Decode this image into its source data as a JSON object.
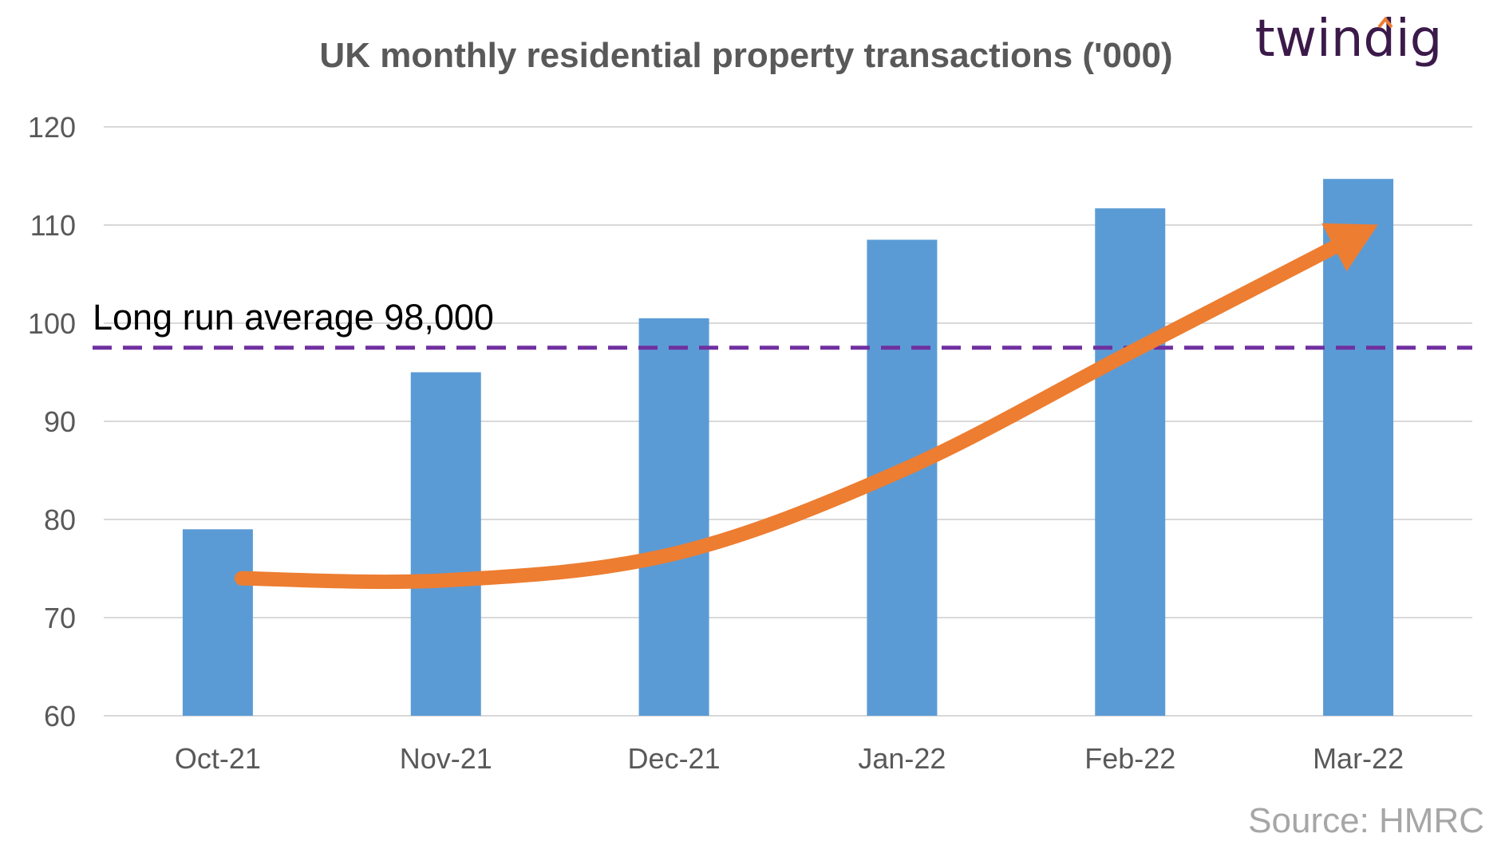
{
  "chart_data": {
    "type": "bar",
    "title": "UK monthly residential property transactions ('000)",
    "categories": [
      "Oct-21",
      "Nov-21",
      "Dec-21",
      "Jan-22",
      "Feb-22",
      "Mar-22"
    ],
    "values": [
      79,
      95,
      100.5,
      108.5,
      111.7,
      114.7
    ],
    "ylim": [
      60,
      120
    ],
    "yticks": [
      60,
      70,
      80,
      90,
      100,
      110,
      120
    ],
    "grid": true,
    "reference_line": {
      "value": 97.5,
      "label": "Long run average 98,000"
    },
    "trend_arrow": {
      "points": [
        74,
        73.8,
        76.5,
        85,
        97,
        109
      ]
    },
    "source": "Source: HMRC",
    "logo": "twindig"
  },
  "colors": {
    "bar": "#5b9bd5",
    "average_line": "#7030a0",
    "trend_arrow": "#ed7d31",
    "grid": "#d9d9d9",
    "text": "#595959",
    "source": "#a6a6a6",
    "logo_text": "#3b1a4a",
    "logo_accent": "#ed7d31"
  }
}
